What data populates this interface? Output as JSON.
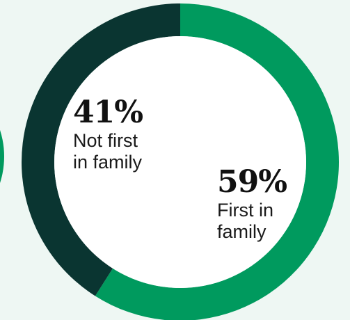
{
  "chart_data": {
    "type": "pie",
    "categories": [
      "Not first in family",
      "First in family"
    ],
    "values": [
      41,
      59
    ],
    "unit": "%",
    "slices": [
      {
        "percent_label": "41%",
        "label": "Not first\nin family",
        "color": "#0a3531"
      },
      {
        "percent_label": "59%",
        "label": "First in\nfamily",
        "color": "#009a5e"
      }
    ]
  },
  "colors": {
    "background": "#eef7f3",
    "inner": "#ffffff"
  }
}
